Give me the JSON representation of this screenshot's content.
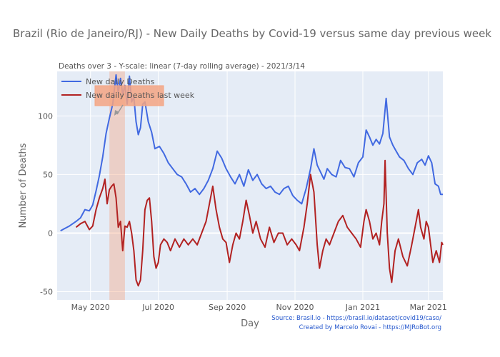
{
  "chart_data": {
    "type": "line",
    "title": "Brazil (Rio de Janeiro/RJ) - New Daily Deaths by Covid-19 versus same day previous week",
    "subtitle": "Deaths over 3 - Y-scale: linear (7-day rolling average) - 2021/3/14",
    "xlabel": "Day",
    "ylabel": "Number of Deaths",
    "x_ticks": [
      "May 2020",
      "Jul 2020",
      "Sep 2020",
      "Nov 2020",
      "Jan 2021",
      "Mar 2021"
    ],
    "y_ticks": [
      "-50",
      "0",
      "50",
      "100"
    ],
    "ylim": [
      -57,
      138
    ],
    "xlim": [
      "2020-04-01",
      "2021-03-14"
    ],
    "grid": true,
    "legend": "top-left",
    "series": [
      {
        "name": "New daily Deaths",
        "color": "#4169E1",
        "points": [
          [
            "2020-04-04",
            2
          ],
          [
            "2020-04-08",
            4
          ],
          [
            "2020-04-12",
            6
          ],
          [
            "2020-04-18",
            10
          ],
          [
            "2020-04-22",
            13
          ],
          [
            "2020-04-26",
            20
          ],
          [
            "2020-04-30",
            19
          ],
          [
            "2020-05-03",
            24
          ],
          [
            "2020-05-06",
            36
          ],
          [
            "2020-05-09",
            49
          ],
          [
            "2020-05-12",
            65
          ],
          [
            "2020-05-15",
            85
          ],
          [
            "2020-05-18",
            98
          ],
          [
            "2020-05-21",
            110
          ],
          [
            "2020-05-24",
            135
          ],
          [
            "2020-05-26",
            120
          ],
          [
            "2020-05-28",
            132
          ],
          [
            "2020-05-30",
            118
          ],
          [
            "2020-06-01",
            126
          ],
          [
            "2020-06-03",
            110
          ],
          [
            "2020-06-05",
            134
          ],
          [
            "2020-06-07",
            112
          ],
          [
            "2020-06-09",
            116
          ],
          [
            "2020-06-11",
            95
          ],
          [
            "2020-06-13",
            84
          ],
          [
            "2020-06-15",
            90
          ],
          [
            "2020-06-17",
            110
          ],
          [
            "2020-06-19",
            112
          ],
          [
            "2020-06-22",
            95
          ],
          [
            "2020-06-25",
            86
          ],
          [
            "2020-06-28",
            72
          ],
          [
            "2020-07-02",
            74
          ],
          [
            "2020-07-06",
            68
          ],
          [
            "2020-07-10",
            60
          ],
          [
            "2020-07-14",
            55
          ],
          [
            "2020-07-18",
            50
          ],
          [
            "2020-07-22",
            48
          ],
          [
            "2020-07-26",
            42
          ],
          [
            "2020-07-30",
            35
          ],
          [
            "2020-08-03",
            38
          ],
          [
            "2020-08-07",
            33
          ],
          [
            "2020-08-11",
            38
          ],
          [
            "2020-08-15",
            45
          ],
          [
            "2020-08-19",
            55
          ],
          [
            "2020-08-23",
            70
          ],
          [
            "2020-08-27",
            64
          ],
          [
            "2020-08-31",
            55
          ],
          [
            "2020-09-04",
            48
          ],
          [
            "2020-09-08",
            42
          ],
          [
            "2020-09-12",
            50
          ],
          [
            "2020-09-16",
            40
          ],
          [
            "2020-09-20",
            54
          ],
          [
            "2020-09-24",
            45
          ],
          [
            "2020-09-28",
            50
          ],
          [
            "2020-10-02",
            42
          ],
          [
            "2020-10-06",
            38
          ],
          [
            "2020-10-10",
            40
          ],
          [
            "2020-10-14",
            35
          ],
          [
            "2020-10-18",
            33
          ],
          [
            "2020-10-22",
            38
          ],
          [
            "2020-10-26",
            40
          ],
          [
            "2020-10-30",
            32
          ],
          [
            "2020-11-03",
            28
          ],
          [
            "2020-11-07",
            25
          ],
          [
            "2020-11-11",
            38
          ],
          [
            "2020-11-15",
            55
          ],
          [
            "2020-11-18",
            72
          ],
          [
            "2020-11-21",
            58
          ],
          [
            "2020-11-24",
            52
          ],
          [
            "2020-11-27",
            46
          ],
          [
            "2020-11-30",
            55
          ],
          [
            "2020-12-04",
            50
          ],
          [
            "2020-12-08",
            48
          ],
          [
            "2020-12-12",
            62
          ],
          [
            "2020-12-16",
            56
          ],
          [
            "2020-12-20",
            55
          ],
          [
            "2020-12-24",
            48
          ],
          [
            "2020-12-28",
            60
          ],
          [
            "2021-01-01",
            65
          ],
          [
            "2021-01-04",
            88
          ],
          [
            "2021-01-07",
            82
          ],
          [
            "2021-01-10",
            75
          ],
          [
            "2021-01-13",
            80
          ],
          [
            "2021-01-16",
            76
          ],
          [
            "2021-01-19",
            85
          ],
          [
            "2021-01-22",
            115
          ],
          [
            "2021-01-25",
            82
          ],
          [
            "2021-01-28",
            75
          ],
          [
            "2021-01-31",
            70
          ],
          [
            "2021-02-03",
            65
          ],
          [
            "2021-02-07",
            62
          ],
          [
            "2021-02-11",
            55
          ],
          [
            "2021-02-15",
            50
          ],
          [
            "2021-02-19",
            60
          ],
          [
            "2021-02-23",
            63
          ],
          [
            "2021-02-26",
            58
          ],
          [
            "2021-03-01",
            66
          ],
          [
            "2021-03-04",
            60
          ],
          [
            "2021-03-07",
            42
          ],
          [
            "2021-03-10",
            40
          ],
          [
            "2021-03-12",
            33
          ],
          [
            "2021-03-14",
            33
          ]
        ]
      },
      {
        "name": "New daily Deaths last week",
        "color": "#B22222",
        "points": [
          [
            "2020-04-18",
            5
          ],
          [
            "2020-04-22",
            8
          ],
          [
            "2020-04-26",
            10
          ],
          [
            "2020-04-30",
            3
          ],
          [
            "2020-05-03",
            6
          ],
          [
            "2020-05-06",
            20
          ],
          [
            "2020-05-09",
            30
          ],
          [
            "2020-05-12",
            38
          ],
          [
            "2020-05-14",
            46
          ],
          [
            "2020-05-16",
            25
          ],
          [
            "2020-05-18",
            37
          ],
          [
            "2020-05-20",
            40
          ],
          [
            "2020-05-22",
            42
          ],
          [
            "2020-05-24",
            30
          ],
          [
            "2020-05-26",
            5
          ],
          [
            "2020-05-28",
            10
          ],
          [
            "2020-05-30",
            -15
          ],
          [
            "2020-06-01",
            6
          ],
          [
            "2020-06-03",
            5
          ],
          [
            "2020-06-05",
            10
          ],
          [
            "2020-06-07",
            0
          ],
          [
            "2020-06-09",
            -15
          ],
          [
            "2020-06-11",
            -40
          ],
          [
            "2020-06-13",
            -45
          ],
          [
            "2020-06-15",
            -40
          ],
          [
            "2020-06-17",
            -15
          ],
          [
            "2020-06-19",
            20
          ],
          [
            "2020-06-21",
            28
          ],
          [
            "2020-06-23",
            30
          ],
          [
            "2020-06-25",
            10
          ],
          [
            "2020-06-27",
            -20
          ],
          [
            "2020-06-29",
            -30
          ],
          [
            "2020-07-01",
            -25
          ],
          [
            "2020-07-03",
            -10
          ],
          [
            "2020-07-06",
            -5
          ],
          [
            "2020-07-09",
            -8
          ],
          [
            "2020-07-12",
            -15
          ],
          [
            "2020-07-16",
            -5
          ],
          [
            "2020-07-20",
            -12
          ],
          [
            "2020-07-24",
            -5
          ],
          [
            "2020-07-28",
            -10
          ],
          [
            "2020-08-01",
            -5
          ],
          [
            "2020-08-05",
            -10
          ],
          [
            "2020-08-09",
            0
          ],
          [
            "2020-08-13",
            10
          ],
          [
            "2020-08-16",
            25
          ],
          [
            "2020-08-19",
            40
          ],
          [
            "2020-08-22",
            20
          ],
          [
            "2020-08-25",
            5
          ],
          [
            "2020-08-28",
            -5
          ],
          [
            "2020-08-31",
            -8
          ],
          [
            "2020-09-03",
            -25
          ],
          [
            "2020-09-06",
            -10
          ],
          [
            "2020-09-09",
            0
          ],
          [
            "2020-09-12",
            -5
          ],
          [
            "2020-09-15",
            10
          ],
          [
            "2020-09-18",
            28
          ],
          [
            "2020-09-21",
            15
          ],
          [
            "2020-09-24",
            0
          ],
          [
            "2020-09-27",
            10
          ],
          [
            "2020-10-01",
            -5
          ],
          [
            "2020-10-05",
            -12
          ],
          [
            "2020-10-09",
            5
          ],
          [
            "2020-10-13",
            -8
          ],
          [
            "2020-10-17",
            0
          ],
          [
            "2020-10-21",
            0
          ],
          [
            "2020-10-25",
            -10
          ],
          [
            "2020-10-29",
            -5
          ],
          [
            "2020-11-02",
            -10
          ],
          [
            "2020-11-05",
            -15
          ],
          [
            "2020-11-09",
            5
          ],
          [
            "2020-11-12",
            25
          ],
          [
            "2020-11-15",
            50
          ],
          [
            "2020-11-18",
            35
          ],
          [
            "2020-11-21",
            -10
          ],
          [
            "2020-11-23",
            -30
          ],
          [
            "2020-11-26",
            -15
          ],
          [
            "2020-11-29",
            -5
          ],
          [
            "2020-12-02",
            -10
          ],
          [
            "2020-12-06",
            0
          ],
          [
            "2020-12-10",
            10
          ],
          [
            "2020-12-14",
            15
          ],
          [
            "2020-12-18",
            5
          ],
          [
            "2020-12-22",
            0
          ],
          [
            "2020-12-26",
            -5
          ],
          [
            "2020-12-30",
            -12
          ],
          [
            "2021-01-02",
            10
          ],
          [
            "2021-01-04",
            20
          ],
          [
            "2021-01-07",
            10
          ],
          [
            "2021-01-10",
            -5
          ],
          [
            "2021-01-13",
            0
          ],
          [
            "2021-01-16",
            -10
          ],
          [
            "2021-01-18",
            10
          ],
          [
            "2021-01-20",
            25
          ],
          [
            "2021-01-21",
            62
          ],
          [
            "2021-01-23",
            0
          ],
          [
            "2021-01-25",
            -30
          ],
          [
            "2021-01-27",
            -42
          ],
          [
            "2021-01-30",
            -15
          ],
          [
            "2021-02-02",
            -5
          ],
          [
            "2021-02-06",
            -20
          ],
          [
            "2021-02-10",
            -28
          ],
          [
            "2021-02-14",
            -10
          ],
          [
            "2021-02-17",
            5
          ],
          [
            "2021-02-20",
            20
          ],
          [
            "2021-02-22",
            5
          ],
          [
            "2021-02-25",
            -5
          ],
          [
            "2021-02-27",
            10
          ],
          [
            "2021-03-01",
            5
          ],
          [
            "2021-03-03",
            -10
          ],
          [
            "2021-03-05",
            -25
          ],
          [
            "2021-03-08",
            -15
          ],
          [
            "2021-03-11",
            -25
          ],
          [
            "2021-03-13",
            -8
          ],
          [
            "2021-03-14",
            -10
          ]
        ]
      }
    ],
    "highlight_band": {
      "start": "2020-05-18",
      "end": "2020-06-01",
      "color": "#F4A582"
    },
    "annotation": {
      "color": "#F4A582"
    },
    "source_lines": [
      "Source: Brasil.io - https://brasil.io/dataset/covid19/caso/",
      "Created by Marcelo Rovai - https://MJRoBot.org"
    ]
  }
}
